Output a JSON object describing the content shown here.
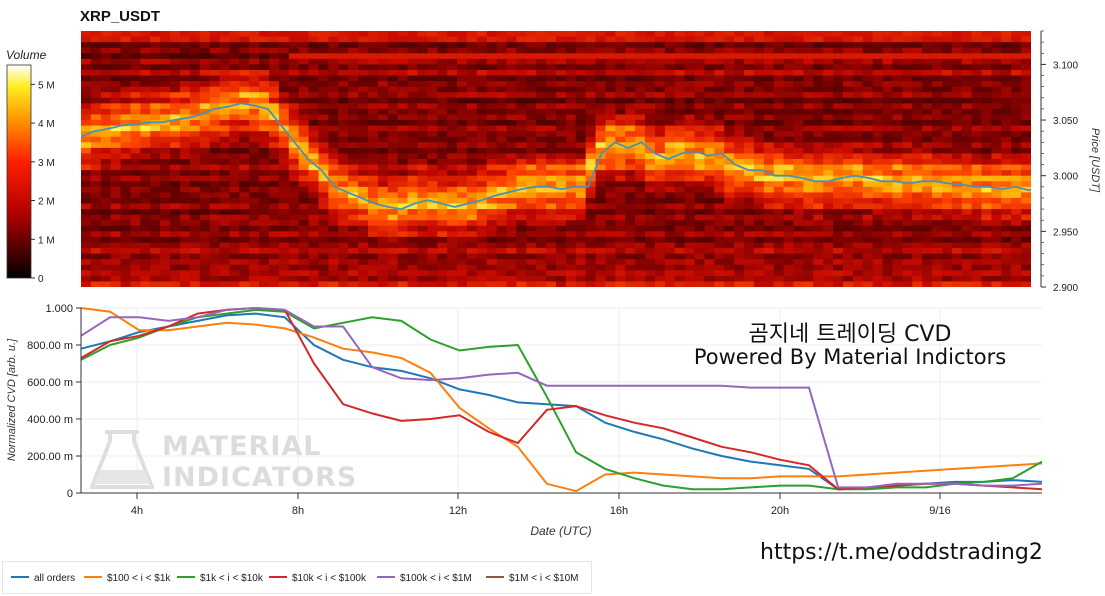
{
  "chart_data": [
    {
      "type": "heatmap",
      "title": "XRP_USDT",
      "xlabel": "",
      "ylabel": "Price [USDT]",
      "ylim": [
        2.9,
        3.13
      ],
      "yticks": [
        "3.100",
        "3.050",
        "3.000",
        "2.950",
        "2.900"
      ],
      "colorbar": {
        "title": "Volume",
        "ticks": [
          "5 M",
          "4 M",
          "3 M",
          "2 M",
          "1 M",
          "0"
        ],
        "range": [
          0,
          5.5
        ]
      },
      "price_series_color": "#4a90b8",
      "price_series": [
        3.035,
        3.04,
        3.042,
        3.045,
        3.046,
        3.048,
        3.048,
        3.05,
        3.052,
        3.055,
        3.06,
        3.062,
        3.065,
        3.063,
        3.06,
        3.045,
        3.03,
        3.015,
        3.005,
        2.99,
        2.985,
        2.98,
        2.975,
        2.972,
        2.97,
        2.975,
        2.978,
        2.975,
        2.972,
        2.975,
        2.978,
        2.982,
        2.985,
        2.988,
        2.99,
        2.99,
        2.988,
        2.99,
        2.99,
        3.02,
        3.03,
        3.025,
        3.03,
        3.02,
        3.015,
        3.02,
        3.022,
        3.018,
        3.02,
        3.01,
        3.005,
        3.005,
        3.0,
        3.0,
        2.998,
        2.995,
        2.995,
        2.998,
        3.0,
        2.998,
        2.995,
        2.995,
        2.993,
        2.995,
        2.995,
        2.993,
        2.992,
        2.99,
        2.99,
        2.988,
        2.99,
        2.987,
        2.988
      ]
    },
    {
      "type": "line",
      "xlabel": "Date (UTC)",
      "ylabel": "Normalized CVD [arb. u.]",
      "ylim": [
        0,
        1.0
      ],
      "x_ticks": [
        "4h",
        "8h",
        "12h",
        "16h",
        "20h",
        "9/16"
      ],
      "y_ticks": [
        "1.000",
        "800.00 m",
        "600.00 m",
        "400.00 m",
        "200.00 m",
        "0"
      ],
      "grid": true,
      "series": [
        {
          "name": "all orders",
          "color": "#1f77b4",
          "values": [
            0.78,
            0.82,
            0.87,
            0.9,
            0.93,
            0.96,
            0.97,
            0.95,
            0.8,
            0.72,
            0.68,
            0.66,
            0.62,
            0.56,
            0.53,
            0.49,
            0.48,
            0.47,
            0.38,
            0.33,
            0.29,
            0.24,
            0.2,
            0.17,
            0.15,
            0.13,
            0.02,
            0.03,
            0.04,
            0.05,
            0.06,
            0.06,
            0.07,
            0.06
          ]
        },
        {
          "name": "$100 < i < $1k",
          "color": "#ff7f0e",
          "values": [
            1.0,
            0.98,
            0.88,
            0.88,
            0.9,
            0.92,
            0.91,
            0.89,
            0.84,
            0.78,
            0.76,
            0.73,
            0.65,
            0.46,
            0.35,
            0.25,
            0.05,
            0.01,
            0.1,
            0.11,
            0.1,
            0.09,
            0.08,
            0.08,
            0.09,
            0.09,
            0.09,
            0.1,
            0.11,
            0.12,
            0.13,
            0.14,
            0.15,
            0.16
          ]
        },
        {
          "name": "$1k < i < $10k",
          "color": "#2ca02c",
          "values": [
            0.72,
            0.8,
            0.84,
            0.9,
            0.95,
            0.97,
            0.99,
            0.98,
            0.89,
            0.92,
            0.95,
            0.93,
            0.83,
            0.77,
            0.79,
            0.8,
            0.52,
            0.22,
            0.13,
            0.08,
            0.04,
            0.02,
            0.02,
            0.03,
            0.04,
            0.04,
            0.02,
            0.02,
            0.03,
            0.03,
            0.05,
            0.06,
            0.08,
            0.17
          ]
        },
        {
          "name": "$10k < i < $100k",
          "color": "#d62728",
          "values": [
            0.73,
            0.82,
            0.85,
            0.9,
            0.97,
            0.99,
            1.0,
            0.99,
            0.7,
            0.48,
            0.43,
            0.39,
            0.4,
            0.42,
            0.33,
            0.27,
            0.45,
            0.47,
            0.42,
            0.38,
            0.35,
            0.3,
            0.25,
            0.22,
            0.18,
            0.15,
            0.02,
            0.03,
            0.04,
            0.05,
            0.05,
            0.04,
            0.03,
            0.02
          ]
        },
        {
          "name": "$100k < i < $1M",
          "color": "#9467bd",
          "values": [
            0.85,
            0.95,
            0.95,
            0.93,
            0.95,
            0.99,
            1.0,
            0.99,
            0.9,
            0.9,
            0.68,
            0.62,
            0.61,
            0.62,
            0.64,
            0.65,
            0.58,
            0.58,
            0.58,
            0.58,
            0.58,
            0.58,
            0.58,
            0.57,
            0.57,
            0.57,
            0.03,
            0.03,
            0.05,
            0.05,
            0.05,
            0.04,
            0.04,
            0.05
          ]
        },
        {
          "name": "$1M < i < $10M",
          "color": "#8c564b",
          "values": []
        }
      ]
    }
  ],
  "overlay": {
    "title": "곰지네 트레이딩 CVD",
    "subtitle": "Powered By Material Indictors",
    "watermark_line1": "MATERIAL",
    "watermark_line2": "INDICATORS",
    "link": "https://t.me/oddstrading2"
  }
}
